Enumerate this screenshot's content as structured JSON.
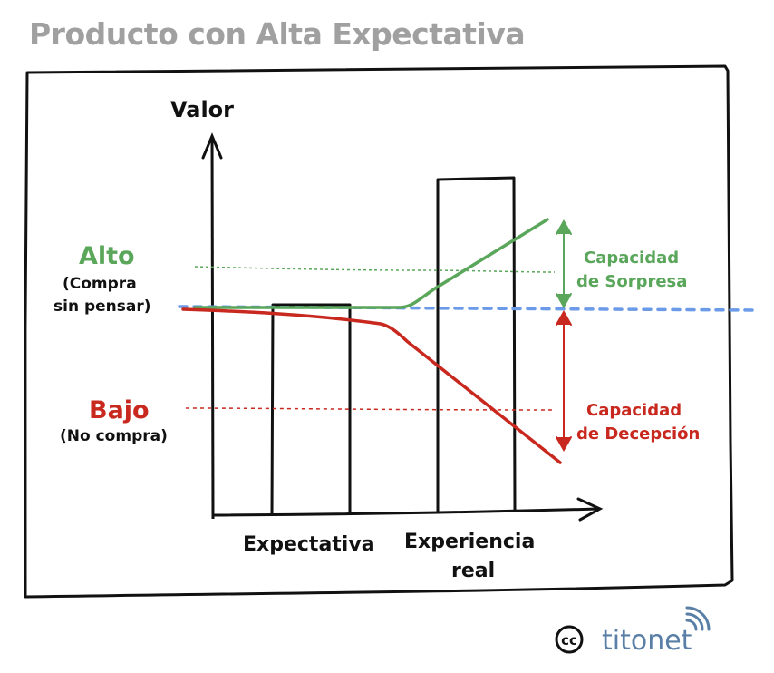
{
  "title": "Producto con Alta Expectativa",
  "axis": {
    "y_label": "Valor"
  },
  "levels": {
    "high": {
      "label": "Alto",
      "note_line1": "(Compra",
      "note_line2": "sin pensar)"
    },
    "low": {
      "label": "Bajo",
      "note": "(No compra)"
    }
  },
  "bars": {
    "expectation": "Expectativa",
    "experience_line1": "Experiencia",
    "experience_line2": "real"
  },
  "annotations": {
    "surprise_line1": "Capacidad",
    "surprise_line2": "de Sorpresa",
    "disappointment_line1": "Capacidad",
    "disappointment_line2": "de Decepción"
  },
  "logo": {
    "cc": "cc",
    "brand": "titonet"
  },
  "colors": {
    "green": "#5aa65a",
    "red": "#c8281e",
    "blue_dashed": "#6a9ae8",
    "title_gray": "#a0a0a0",
    "black": "#111111",
    "logo_blue": "#5a7fa6"
  }
}
